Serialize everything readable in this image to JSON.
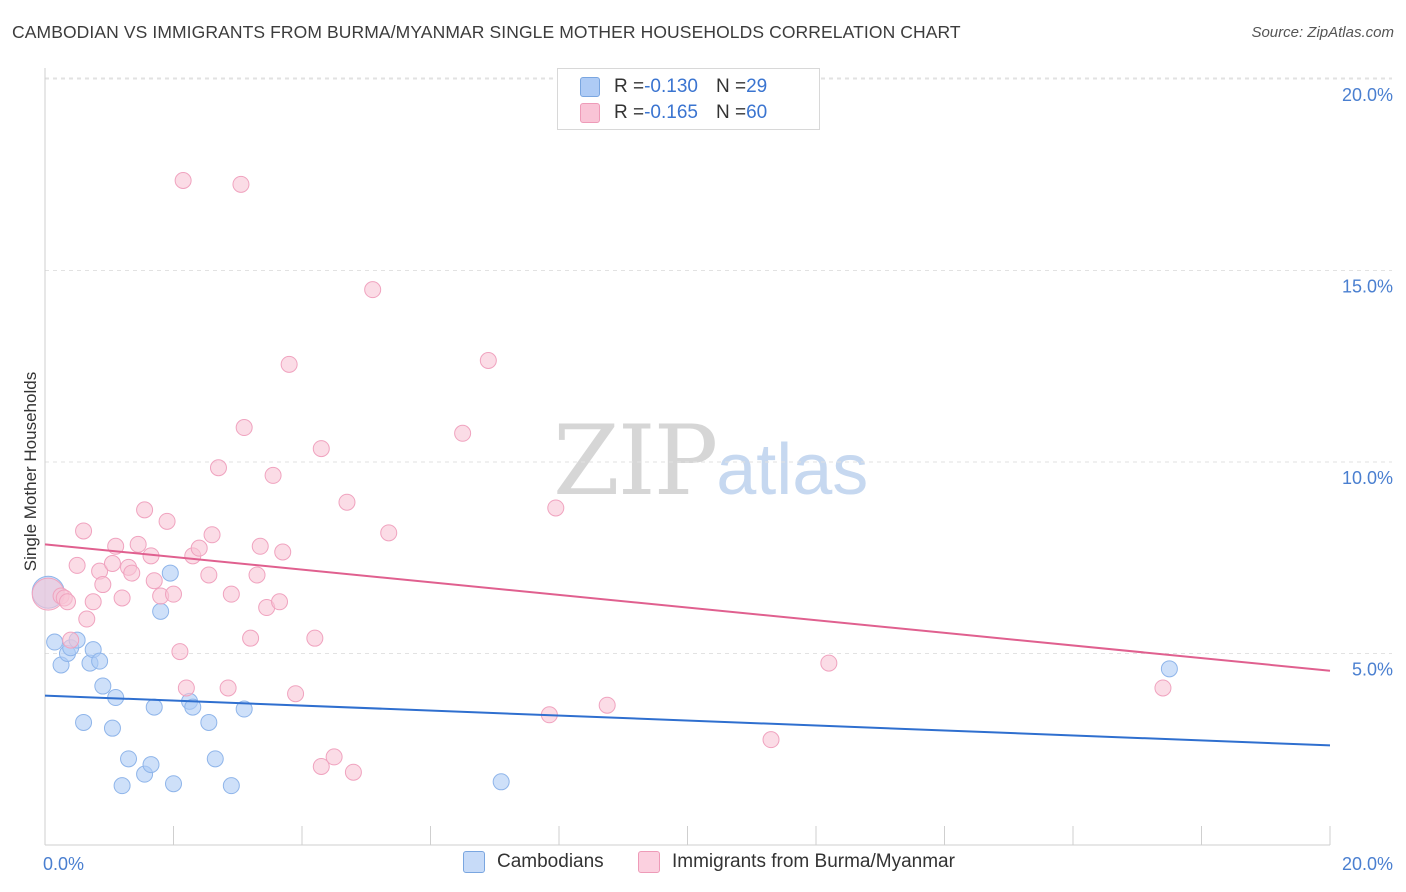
{
  "header": {
    "title": "CAMBODIAN VS IMMIGRANTS FROM BURMA/MYANMAR SINGLE MOTHER HOUSEHOLDS CORRELATION CHART",
    "source": "Source: ZipAtlas.com"
  },
  "watermark": {
    "zip": "ZIP",
    "atlas": "atlas"
  },
  "legend_top": {
    "rows": [
      {
        "r_label": "R = ",
        "r_value": "-0.130",
        "n_label": "N = ",
        "n_value": "29",
        "color": "#aecbf5",
        "stroke": "#7aa6e0"
      },
      {
        "r_label": "R = ",
        "r_value": "-0.165",
        "n_label": "N = ",
        "n_value": "60",
        "color": "#f9c4d6",
        "stroke": "#ee9bb8"
      }
    ]
  },
  "legend_bottom": {
    "items": [
      {
        "label": "Cambodians",
        "color": "#c7dbf8",
        "stroke": "#7aa6e0"
      },
      {
        "label": "Immigrants from Burma/Myanmar",
        "color": "#fbd0df",
        "stroke": "#ee9bb8"
      }
    ]
  },
  "chart_data": {
    "type": "scatter",
    "title": "CAMBODIAN VS IMMIGRANTS FROM BURMA/MYANMAR SINGLE MOTHER HOUSEHOLDS CORRELATION CHART",
    "xlabel": "",
    "ylabel": "Single Mother Households",
    "xlim": [
      0,
      20
    ],
    "ylim": [
      0,
      20
    ],
    "x_ticks": [
      0,
      2,
      4,
      6,
      8,
      10,
      12,
      14,
      16,
      18,
      20
    ],
    "x_tick_labels": {
      "left": "0.0%",
      "right": "20.0%"
    },
    "y_ticks": [
      5,
      10,
      15,
      20
    ],
    "y_tick_labels": [
      "5.0%",
      "10.0%",
      "15.0%",
      "20.0%"
    ],
    "grid": true,
    "legend": "top-center",
    "series": [
      {
        "name": "Cambodians",
        "color": "#aecbf5",
        "stroke": "#8fb5ea",
        "line_color": "#2f6fcf",
        "trend": {
          "x": [
            0,
            20
          ],
          "y": [
            3.9,
            2.6
          ]
        },
        "points": [
          {
            "x": 0.05,
            "y": 6.6,
            "big": true
          },
          {
            "x": 0.15,
            "y": 5.3
          },
          {
            "x": 0.25,
            "y": 4.7
          },
          {
            "x": 0.35,
            "y": 5.0
          },
          {
            "x": 0.4,
            "y": 5.15
          },
          {
            "x": 0.5,
            "y": 5.35
          },
          {
            "x": 0.7,
            "y": 4.75
          },
          {
            "x": 0.75,
            "y": 5.1
          },
          {
            "x": 0.85,
            "y": 4.8
          },
          {
            "x": 0.9,
            "y": 4.15
          },
          {
            "x": 1.1,
            "y": 3.85
          },
          {
            "x": 0.6,
            "y": 3.2
          },
          {
            "x": 1.05,
            "y": 3.05
          },
          {
            "x": 1.3,
            "y": 2.25
          },
          {
            "x": 1.2,
            "y": 1.55
          },
          {
            "x": 1.55,
            "y": 1.85
          },
          {
            "x": 1.65,
            "y": 2.1
          },
          {
            "x": 1.7,
            "y": 3.6
          },
          {
            "x": 1.8,
            "y": 6.1
          },
          {
            "x": 1.95,
            "y": 7.1
          },
          {
            "x": 2.0,
            "y": 1.6
          },
          {
            "x": 2.25,
            "y": 3.75
          },
          {
            "x": 2.3,
            "y": 3.6
          },
          {
            "x": 2.55,
            "y": 3.2
          },
          {
            "x": 2.65,
            "y": 2.25
          },
          {
            "x": 2.9,
            "y": 1.55
          },
          {
            "x": 3.1,
            "y": 3.55
          },
          {
            "x": 7.1,
            "y": 1.65
          },
          {
            "x": 17.5,
            "y": 4.6
          }
        ]
      },
      {
        "name": "Immigrants from Burma/Myanmar",
        "color": "#f9c4d6",
        "stroke": "#f0a3bf",
        "line_color": "#e0608f",
        "trend": {
          "x": [
            0,
            20
          ],
          "y": [
            7.85,
            4.55
          ]
        },
        "points": [
          {
            "x": 0.05,
            "y": 6.55,
            "big": true
          },
          {
            "x": 0.25,
            "y": 6.5
          },
          {
            "x": 0.3,
            "y": 6.45
          },
          {
            "x": 0.35,
            "y": 6.35
          },
          {
            "x": 0.4,
            "y": 5.35
          },
          {
            "x": 0.6,
            "y": 8.2
          },
          {
            "x": 0.5,
            "y": 7.3
          },
          {
            "x": 0.65,
            "y": 5.9
          },
          {
            "x": 0.75,
            "y": 6.35
          },
          {
            "x": 0.85,
            "y": 7.15
          },
          {
            "x": 0.9,
            "y": 6.8
          },
          {
            "x": 1.05,
            "y": 7.35
          },
          {
            "x": 1.1,
            "y": 7.8
          },
          {
            "x": 1.2,
            "y": 6.45
          },
          {
            "x": 1.3,
            "y": 7.25
          },
          {
            "x": 1.35,
            "y": 7.1
          },
          {
            "x": 1.45,
            "y": 7.85
          },
          {
            "x": 1.55,
            "y": 8.75
          },
          {
            "x": 1.65,
            "y": 7.55
          },
          {
            "x": 1.7,
            "y": 6.9
          },
          {
            "x": 1.8,
            "y": 6.5
          },
          {
            "x": 1.9,
            "y": 8.45
          },
          {
            "x": 2.0,
            "y": 6.55
          },
          {
            "x": 2.1,
            "y": 5.05
          },
          {
            "x": 2.2,
            "y": 4.1
          },
          {
            "x": 2.3,
            "y": 7.55
          },
          {
            "x": 2.4,
            "y": 7.75
          },
          {
            "x": 2.55,
            "y": 7.05
          },
          {
            "x": 2.6,
            "y": 8.1
          },
          {
            "x": 2.7,
            "y": 9.85
          },
          {
            "x": 2.85,
            "y": 4.1
          },
          {
            "x": 2.9,
            "y": 6.55
          },
          {
            "x": 3.1,
            "y": 10.9
          },
          {
            "x": 3.2,
            "y": 5.4
          },
          {
            "x": 3.3,
            "y": 7.05
          },
          {
            "x": 3.35,
            "y": 7.8
          },
          {
            "x": 3.45,
            "y": 6.2
          },
          {
            "x": 3.55,
            "y": 9.65
          },
          {
            "x": 3.65,
            "y": 6.35
          },
          {
            "x": 3.7,
            "y": 7.65
          },
          {
            "x": 3.8,
            "y": 12.55
          },
          {
            "x": 3.9,
            "y": 3.95
          },
          {
            "x": 4.2,
            "y": 5.4
          },
          {
            "x": 4.3,
            "y": 10.35
          },
          {
            "x": 4.3,
            "y": 2.05
          },
          {
            "x": 4.5,
            "y": 2.3
          },
          {
            "x": 4.7,
            "y": 8.95
          },
          {
            "x": 4.8,
            "y": 1.9
          },
          {
            "x": 5.1,
            "y": 14.5
          },
          {
            "x": 5.35,
            "y": 8.15
          },
          {
            "x": 6.5,
            "y": 10.75
          },
          {
            "x": 6.9,
            "y": 12.65
          },
          {
            "x": 7.85,
            "y": 3.4
          },
          {
            "x": 7.95,
            "y": 8.8
          },
          {
            "x": 8.75,
            "y": 3.65
          },
          {
            "x": 2.15,
            "y": 17.35
          },
          {
            "x": 3.05,
            "y": 17.25
          },
          {
            "x": 11.3,
            "y": 2.75
          },
          {
            "x": 12.2,
            "y": 4.75
          },
          {
            "x": 17.4,
            "y": 4.1
          }
        ]
      }
    ]
  }
}
